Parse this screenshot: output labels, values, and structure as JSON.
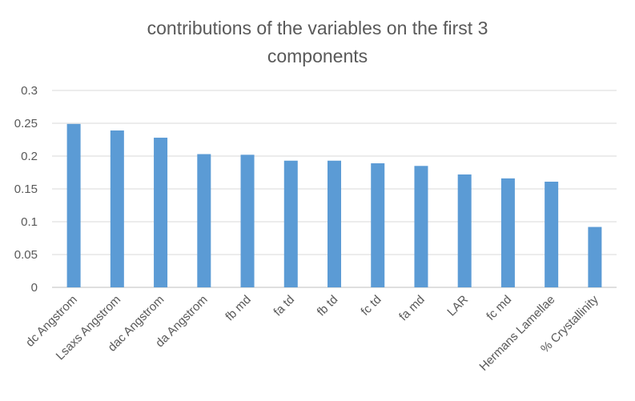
{
  "chart_data": {
    "type": "bar",
    "title": "contributions of the variables on the first 3 components",
    "xlabel": "",
    "ylabel": "",
    "ylim": [
      0,
      0.3
    ],
    "yticks": [
      0,
      0.05,
      0.1,
      0.15,
      0.2,
      0.25,
      0.3
    ],
    "ytick_labels": [
      "0",
      "0.05",
      "0.1",
      "0.15",
      "0.2",
      "0.25",
      "0.3"
    ],
    "grid": true,
    "legend": "none",
    "bar_color": "#5B9BD5",
    "categories": [
      "dc Angstrom",
      "Lsaxs Angstrom",
      "dac Angstrom",
      "da Angstrom",
      "fb md",
      "fa td",
      "fb td",
      "fc td",
      "fa md",
      "LAR",
      "fc md",
      "Hermans Lamellae",
      "% Crystallinity"
    ],
    "values": [
      0.249,
      0.239,
      0.228,
      0.203,
      0.202,
      0.193,
      0.193,
      0.189,
      0.185,
      0.172,
      0.166,
      0.161,
      0.092
    ]
  }
}
